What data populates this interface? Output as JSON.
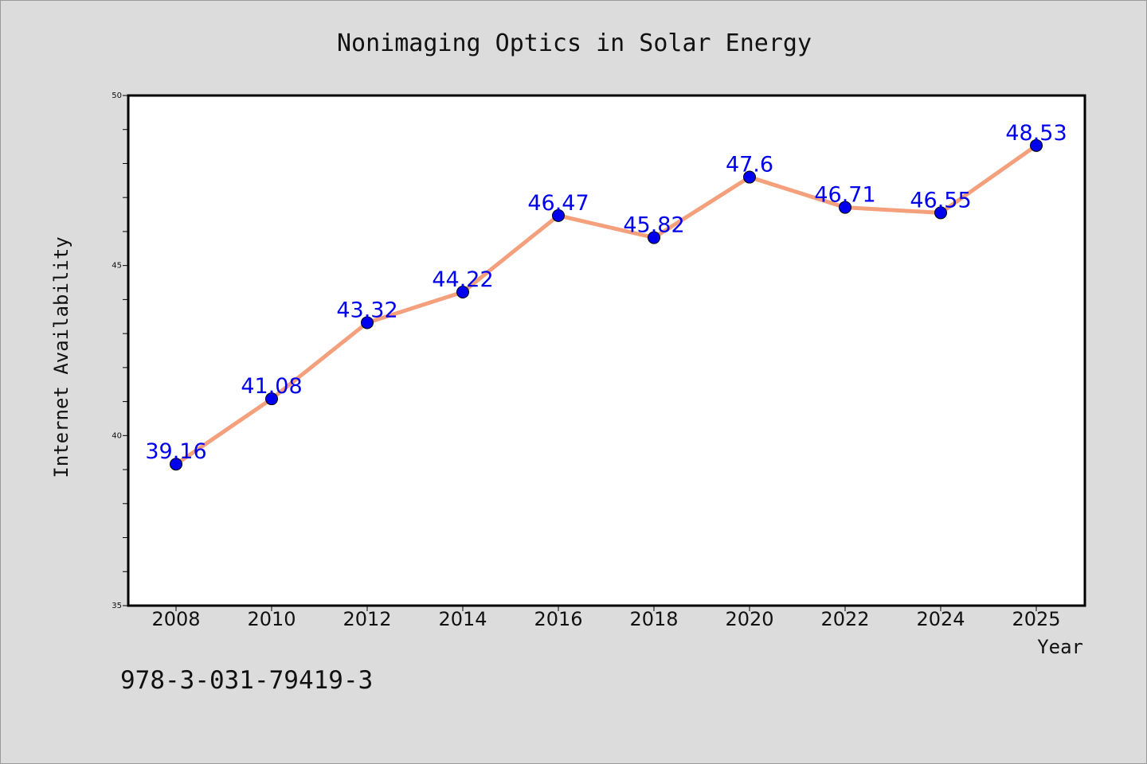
{
  "chart_data": {
    "type": "line",
    "title": "Nonimaging Optics in Solar Energy",
    "xlabel": "Year",
    "ylabel": "Internet Availability",
    "categories": [
      "2008",
      "2010",
      "2012",
      "2014",
      "2016",
      "2018",
      "2020",
      "2022",
      "2024",
      "2025"
    ],
    "series": [
      {
        "values": [
          39.16,
          41.08,
          43.32,
          44.22,
          46.47,
          45.82,
          47.6,
          46.71,
          46.55,
          48.53
        ],
        "labels": [
          "39.16",
          "41.08",
          "43.32",
          "44.22",
          "46.47",
          "45.82",
          "47.6",
          "46.71",
          "46.55",
          "48.53"
        ],
        "line_color": "#f4a07c",
        "marker_color": "#0000ee",
        "label_color": "#0000ee"
      }
    ],
    "ylim": [
      35,
      50
    ],
    "yticks_major": [
      35,
      40,
      45,
      50
    ],
    "yticks_minor_step": 1,
    "grid": false,
    "legend": "none"
  },
  "footer": {
    "isbn": "978-3-031-79419-3"
  },
  "colors": {
    "page_background": "#dcdcdc",
    "plot_background": "#ffffff",
    "axis": "#000000"
  }
}
